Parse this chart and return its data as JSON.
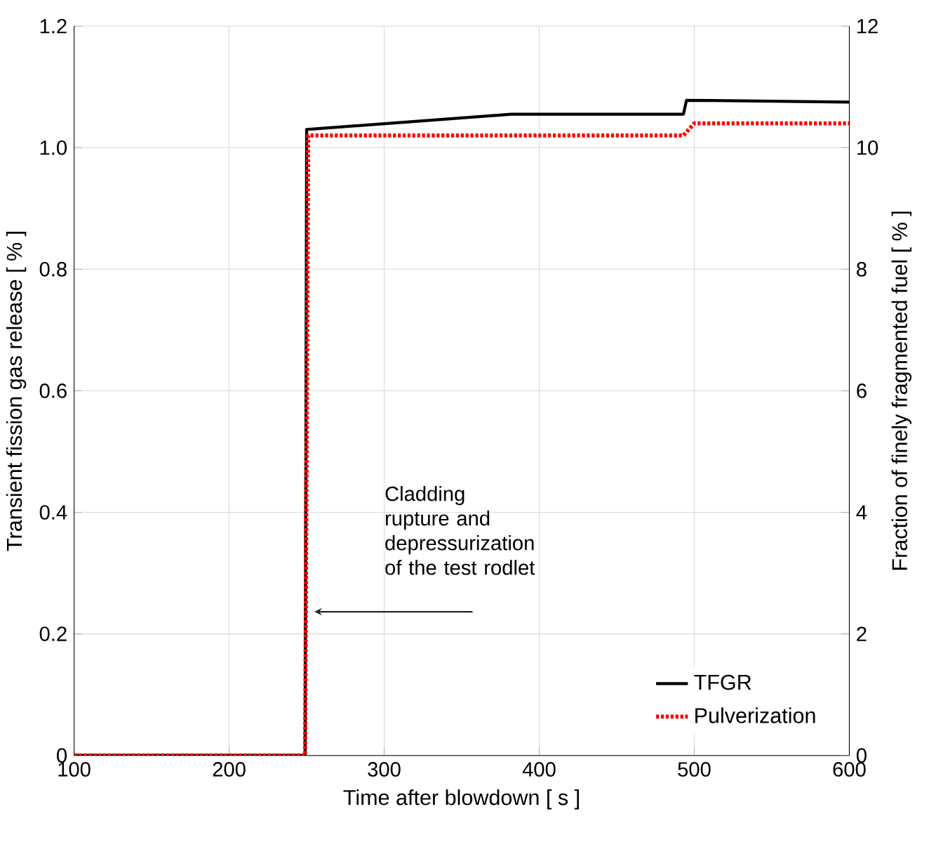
{
  "chart_data": {
    "type": "line",
    "xlabel": "Time after blowdown [ s ]",
    "ylabel": "Transient fission gas release [ % ]",
    "y2label": "Fraction of finely fragmented fuel [ % ]",
    "xlim": [
      100,
      600
    ],
    "xticks": [
      100,
      200,
      300,
      400,
      500,
      600
    ],
    "ylim": [
      0,
      1.2
    ],
    "yticks": [
      0,
      0.2,
      0.4,
      0.6,
      0.8,
      {
        "value": 1,
        "label": "1.0"
      },
      1.2
    ],
    "y2lim": [
      0,
      12
    ],
    "y2ticks": [
      0,
      2,
      4,
      6,
      8,
      10,
      12
    ],
    "grid": true,
    "legend": "bottom right",
    "series": [
      {
        "name": "TFGR",
        "color": "#000000",
        "line_style": "solid",
        "x": [
          100,
          249,
          250,
          382,
          493,
          495,
          600
        ],
        "values": [
          0,
          0,
          1.03,
          1.055,
          1.055,
          1.078,
          1.075
        ]
      },
      {
        "name": "Pulverization",
        "color": "#ff0000",
        "line_style": "dotted",
        "axis": "y2",
        "x": [
          100,
          249,
          251,
          493,
          500,
          600
        ],
        "values": [
          0,
          0,
          10.2,
          10.2,
          10.4,
          10.4
        ]
      }
    ],
    "annotations": [
      "Cladding rupture and depressurization of the test rodlet"
    ]
  }
}
